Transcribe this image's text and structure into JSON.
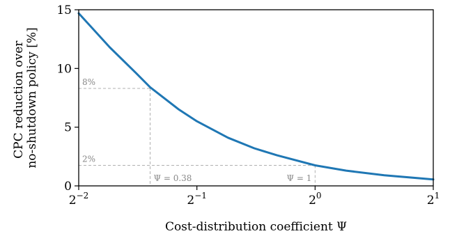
{
  "chart_data": {
    "type": "line",
    "xlabel": "Cost-distribution coefficient Ψ",
    "ylabel": [
      "CPC reduction over",
      "no-shutdown policy [%]"
    ],
    "xscale": "log2",
    "xlim": [
      0.25,
      2
    ],
    "ylim": [
      0,
      15
    ],
    "x_ticks": [
      {
        "value": 0.25,
        "base": "2",
        "exp": "−2"
      },
      {
        "value": 0.5,
        "base": "2",
        "exp": "−1"
      },
      {
        "value": 1,
        "base": "2",
        "exp": "0"
      },
      {
        "value": 2,
        "base": "2",
        "exp": "1"
      }
    ],
    "y_ticks": [
      {
        "value": 0,
        "label": "0"
      },
      {
        "value": 5,
        "label": "5"
      },
      {
        "value": 10,
        "label": "10"
      },
      {
        "value": 15,
        "label": "15"
      }
    ],
    "grid": false,
    "series": [
      {
        "color": "#1f77b4",
        "x": [
          0.25,
          0.3,
          0.35,
          0.38,
          0.45,
          0.5,
          0.6,
          0.7,
          0.8,
          1.0,
          1.2,
          1.5,
          2.0
        ],
        "values": [
          14.7,
          11.8,
          9.6,
          8.4,
          6.5,
          5.5,
          4.1,
          3.2,
          2.6,
          1.75,
          1.3,
          0.9,
          0.55
        ]
      }
    ],
    "annotations": [
      {
        "type": "hline",
        "y": 8.3,
        "x_end": 0.38,
        "label": "8%"
      },
      {
        "type": "vline",
        "x": 0.38,
        "y_end": 8.3,
        "label": "Ψ = 0.38"
      },
      {
        "type": "hline",
        "y": 1.75,
        "x_end": 1.0,
        "label": "2%"
      },
      {
        "type": "vline",
        "x": 1.0,
        "y_end": 1.75,
        "label": "Ψ = 1"
      }
    ],
    "colors": {
      "line": "#1f77b4",
      "annotation": "#b0b0b0",
      "annotation_text": "#888888"
    }
  }
}
